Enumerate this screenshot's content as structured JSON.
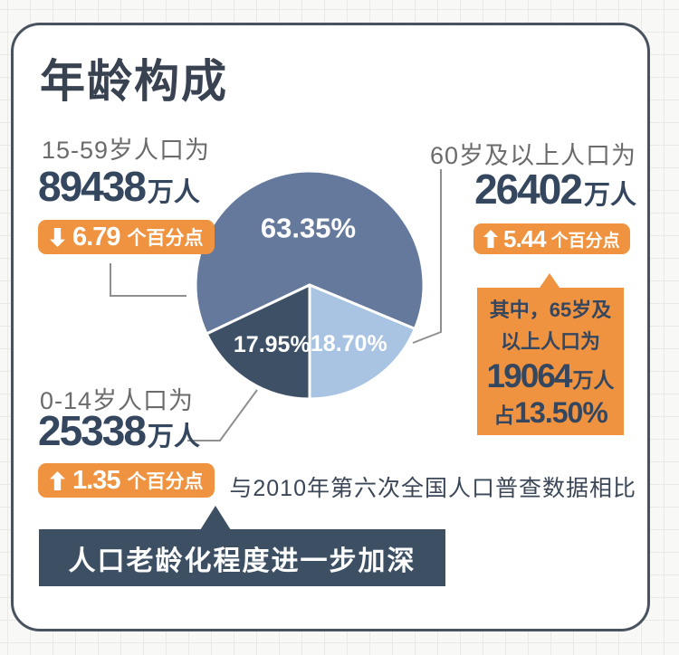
{
  "header": {
    "title": "年龄构成"
  },
  "stats": {
    "working": {
      "label": "15-59岁人口为",
      "value": "89438",
      "unit": "万人",
      "change_value": "6.79",
      "change_suffix": "个百分点",
      "direction": "down"
    },
    "senior": {
      "label": "60岁及以上人口为",
      "value": "26402",
      "unit": "万人",
      "change_value": "5.44",
      "change_suffix": "个百分点",
      "direction": "up"
    },
    "children": {
      "label": "0-14岁人口为",
      "value": "25338",
      "unit": "万人",
      "change_value": "1.35",
      "change_suffix": "个百分点",
      "direction": "up"
    }
  },
  "senior_detail": {
    "line1": "其中，65岁及",
    "line2": "以上人口为",
    "value": "19064",
    "unit": "万人",
    "share_prefix": "占",
    "share_value": "13.50%"
  },
  "caption": "与2010年第六次全国人口普查数据相比",
  "banner": "人口老龄化程度进一步加深",
  "colors": {
    "accent_orange": "#ef9340",
    "banner_bg": "#3d4f63",
    "value_text": "#35465f",
    "label_text": "#6b6b6b",
    "card_border": "#49535f",
    "connector": "#8f8f8f"
  },
  "chart_data": {
    "type": "pie",
    "title": "年龄构成",
    "slices": [
      {
        "label": "15-59岁",
        "value": 63.35,
        "display": "63.35%",
        "color": "#64799b"
      },
      {
        "label": "60岁及以上",
        "value": 18.7,
        "display": "18.70%",
        "color": "#a9c3e2"
      },
      {
        "label": "0-14岁",
        "value": 17.95,
        "display": "17.95%",
        "color": "#3d5066"
      }
    ],
    "start_angle_deg": 244.6,
    "labels": "inside",
    "legend": "none"
  }
}
